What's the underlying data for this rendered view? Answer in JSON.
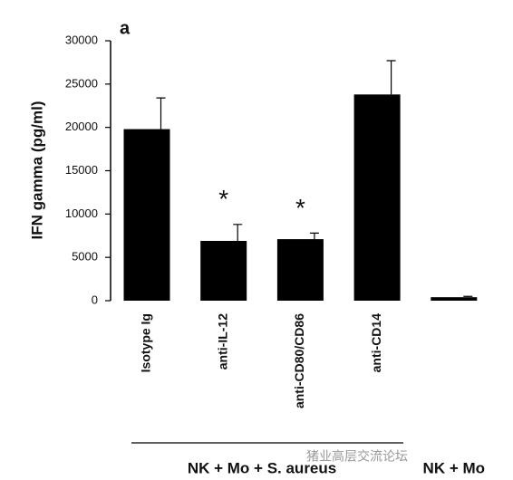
{
  "chart_data": {
    "type": "bar",
    "panel_label": "a",
    "ylabel": "IFN gamma (pg/ml)",
    "categories": [
      "Isotype Ig",
      "anti-IL-12",
      "anti-CD80/CD86",
      "anti-CD14",
      null
    ],
    "values": [
      19800,
      6900,
      7100,
      23800,
      400
    ],
    "errors": [
      3600,
      1900,
      700,
      3900,
      100
    ],
    "significance": [
      null,
      "*",
      "*",
      null,
      null
    ],
    "color": "#000000",
    "groups": [
      {
        "label": "NK + Mo + S. aureus",
        "from": 0,
        "to": 3
      },
      {
        "label": "NK + Mo",
        "from": 4,
        "to": 4
      }
    ],
    "ylim": [
      0,
      30000
    ],
    "yticks": [
      0,
      5000,
      10000,
      15000,
      20000,
      25000,
      30000
    ],
    "grid": false,
    "watermark": "猪业高层交流论坛"
  }
}
